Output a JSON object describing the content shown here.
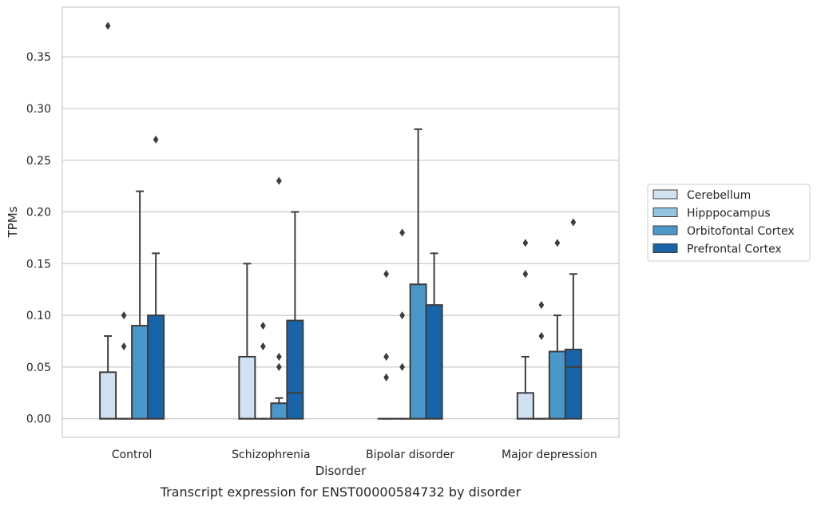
{
  "chart_data": {
    "type": "boxplot",
    "xlabel": "Disorder",
    "ylabel": "TPMs",
    "caption": "Transcript expression for ENST00000584732 by disorder",
    "ylim": [
      -0.018,
      0.398
    ],
    "yticks": [
      0.0,
      0.05,
      0.1,
      0.15,
      0.2,
      0.25,
      0.3,
      0.35
    ],
    "ytick_labels": [
      "0.00",
      "0.05",
      "0.10",
      "0.15",
      "0.20",
      "0.25",
      "0.30",
      "0.35"
    ],
    "grid": "horizontal",
    "legend_position": "right",
    "categories": [
      "Control",
      "Schizophrenia",
      "Bipolar disorder",
      "Major depression"
    ],
    "series": [
      {
        "name": "Cerebellum",
        "color": "#d0e1f2",
        "boxes": [
          {
            "q1": 0.0,
            "median": 0.0,
            "q3": 0.045,
            "whislo": 0.0,
            "whishi": 0.08,
            "fliers": [
              0.38
            ]
          },
          {
            "q1": 0.0,
            "median": 0.0,
            "q3": 0.06,
            "whislo": 0.0,
            "whishi": 0.15,
            "fliers": []
          },
          {
            "q1": 0.0,
            "median": 0.0,
            "q3": 0.0,
            "whislo": 0.0,
            "whishi": 0.0,
            "fliers": [
              0.04,
              0.06,
              0.14
            ]
          },
          {
            "q1": 0.0,
            "median": 0.0,
            "q3": 0.025,
            "whislo": 0.0,
            "whishi": 0.06,
            "fliers": [
              0.14,
              0.17
            ]
          }
        ]
      },
      {
        "name": "Hipppocampus",
        "color": "#94c4df",
        "boxes": [
          {
            "q1": 0.0,
            "median": 0.0,
            "q3": 0.0,
            "whislo": 0.0,
            "whishi": 0.0,
            "fliers": [
              0.07,
              0.1
            ]
          },
          {
            "q1": 0.0,
            "median": 0.0,
            "q3": 0.0,
            "whislo": 0.0,
            "whishi": 0.0,
            "fliers": [
              0.07,
              0.09
            ]
          },
          {
            "q1": 0.0,
            "median": 0.0,
            "q3": 0.0,
            "whislo": 0.0,
            "whishi": 0.0,
            "fliers": [
              0.05,
              0.1,
              0.18
            ]
          },
          {
            "q1": 0.0,
            "median": 0.0,
            "q3": 0.0,
            "whislo": 0.0,
            "whishi": 0.0,
            "fliers": [
              0.08,
              0.11
            ]
          }
        ]
      },
      {
        "name": "Orbitofontal Cortex",
        "color": "#4a98c9",
        "boxes": [
          {
            "q1": 0.0,
            "median": 0.0,
            "q3": 0.09,
            "whislo": 0.0,
            "whishi": 0.22,
            "fliers": []
          },
          {
            "q1": 0.0,
            "median": 0.0,
            "q3": 0.015,
            "whislo": 0.0,
            "whishi": 0.02,
            "fliers": [
              0.05,
              0.06,
              0.23
            ]
          },
          {
            "q1": 0.0,
            "median": 0.0,
            "q3": 0.13,
            "whislo": 0.0,
            "whishi": 0.28,
            "fliers": []
          },
          {
            "q1": 0.0,
            "median": 0.0,
            "q3": 0.065,
            "whislo": 0.0,
            "whishi": 0.1,
            "fliers": [
              0.17
            ]
          }
        ]
      },
      {
        "name": "Prefrontal Cortex",
        "color": "#1764ab",
        "boxes": [
          {
            "q1": 0.0,
            "median": 0.0,
            "q3": 0.1,
            "whislo": 0.0,
            "whishi": 0.16,
            "fliers": [
              0.27
            ]
          },
          {
            "q1": 0.0,
            "median": 0.025,
            "q3": 0.095,
            "whislo": 0.0,
            "whishi": 0.2,
            "fliers": []
          },
          {
            "q1": 0.0,
            "median": 0.0,
            "q3": 0.11,
            "whislo": 0.0,
            "whishi": 0.16,
            "fliers": []
          },
          {
            "q1": 0.0,
            "median": 0.05,
            "q3": 0.067,
            "whislo": 0.0,
            "whishi": 0.14,
            "fliers": [
              0.19
            ]
          }
        ]
      }
    ]
  }
}
